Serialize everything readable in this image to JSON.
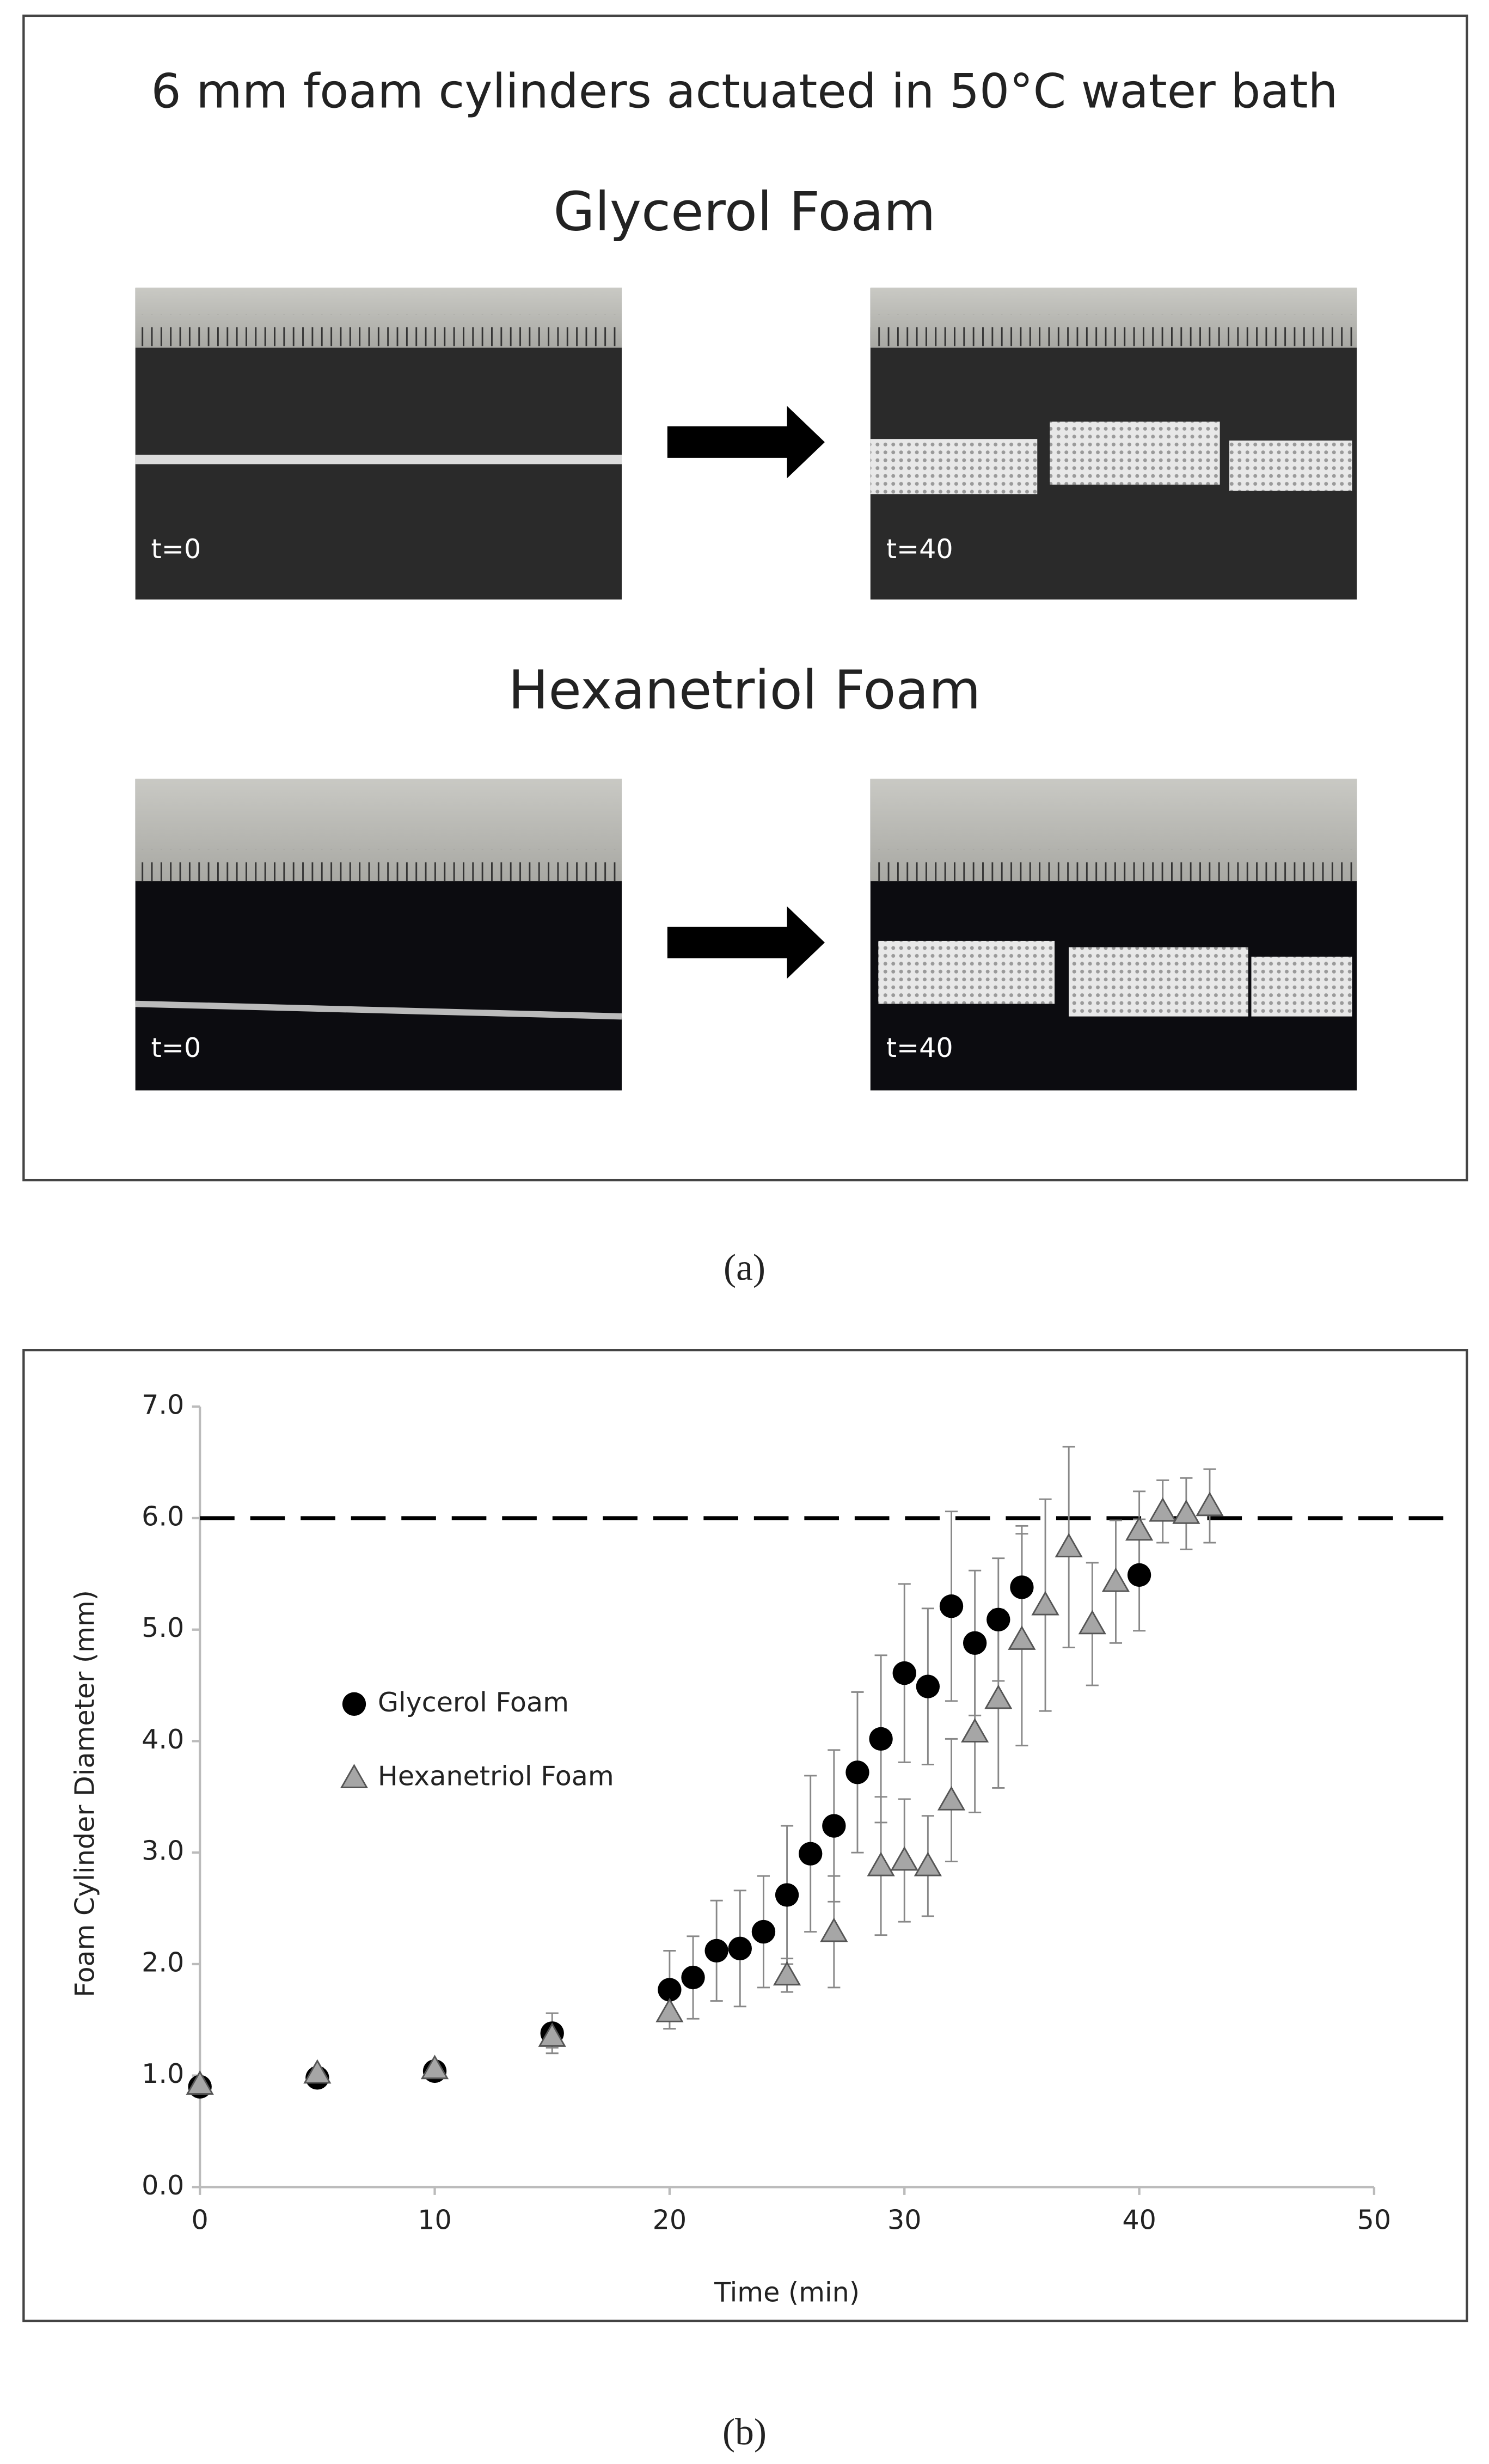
{
  "panel_a": {
    "title": "6 mm foam cylinders actuated in 50°C water bath",
    "rows": [
      {
        "label": "Glycerol Foam",
        "images": [
          {
            "label": "t=0"
          },
          {
            "label": "t=40"
          }
        ]
      },
      {
        "label": "Hexanetriol Foam",
        "images": [
          {
            "label": "t=0"
          },
          {
            "label": "t=40"
          }
        ]
      }
    ],
    "caption": "(a)"
  },
  "chart_data": {
    "type": "scatter",
    "x_label": "Time (min)",
    "y_label": "Foam Cylinder Diameter (mm)",
    "xlim": [
      0,
      50
    ],
    "xticks": [
      0,
      10,
      20,
      30,
      40,
      50
    ],
    "ylim": [
      0,
      7
    ],
    "yticks": [
      {
        "value": 0,
        "label": "0.0"
      },
      {
        "value": 1,
        "label": "1.0"
      },
      {
        "value": 2,
        "label": "2.0"
      },
      {
        "value": 3,
        "label": "3.0"
      },
      {
        "value": 4,
        "label": "4.0"
      },
      {
        "value": 5,
        "label": "5.0"
      },
      {
        "value": 6,
        "label": "6.0"
      },
      {
        "value": 7,
        "label": "7.0"
      }
    ],
    "reference_line": 6,
    "series": [
      {
        "name": "Glycerol Foam",
        "color": "#000000",
        "marker": "circle",
        "x": [
          0,
          5,
          10,
          15,
          20,
          21,
          22,
          23,
          24,
          25,
          26,
          27,
          28,
          29,
          30,
          31,
          32,
          33,
          34,
          35,
          40
        ],
        "values": [
          0.9,
          0.98,
          1.04,
          1.38,
          1.77,
          1.88,
          2.12,
          2.14,
          2.29,
          2.62,
          2.99,
          3.24,
          3.72,
          4.02,
          4.61,
          4.49,
          5.21,
          4.88,
          5.09,
          5.38,
          5.49
        ],
        "errors": [
          0.05,
          0.05,
          0.05,
          0.18,
          0.35,
          0.37,
          0.45,
          0.52,
          0.5,
          0.62,
          0.7,
          0.68,
          0.72,
          0.75,
          0.8,
          0.7,
          0.85,
          0.65,
          0.55,
          0.55,
          0.5
        ]
      },
      {
        "name": "Hexanetriol Foam",
        "color": "#a6a6a6",
        "marker": "triangle",
        "x": [
          0,
          5,
          10,
          15,
          20,
          25,
          27,
          29,
          30,
          31,
          32,
          33,
          34,
          35,
          36,
          37,
          38,
          39,
          40,
          41,
          42,
          43
        ],
        "values": [
          0.92,
          1.02,
          1.06,
          1.35,
          1.57,
          1.9,
          2.29,
          2.88,
          2.93,
          2.88,
          3.47,
          4.08,
          4.38,
          4.91,
          5.22,
          5.74,
          5.05,
          5.43,
          5.89,
          6.06,
          6.04,
          6.11
        ],
        "errors": [
          0.05,
          0.05,
          0.05,
          0.1,
          0.15,
          0.15,
          0.5,
          0.62,
          0.55,
          0.45,
          0.55,
          0.72,
          0.8,
          0.95,
          0.95,
          0.9,
          0.55,
          0.55,
          0.35,
          0.28,
          0.32,
          0.33
        ]
      }
    ]
  },
  "panel_b_caption": "(b)"
}
